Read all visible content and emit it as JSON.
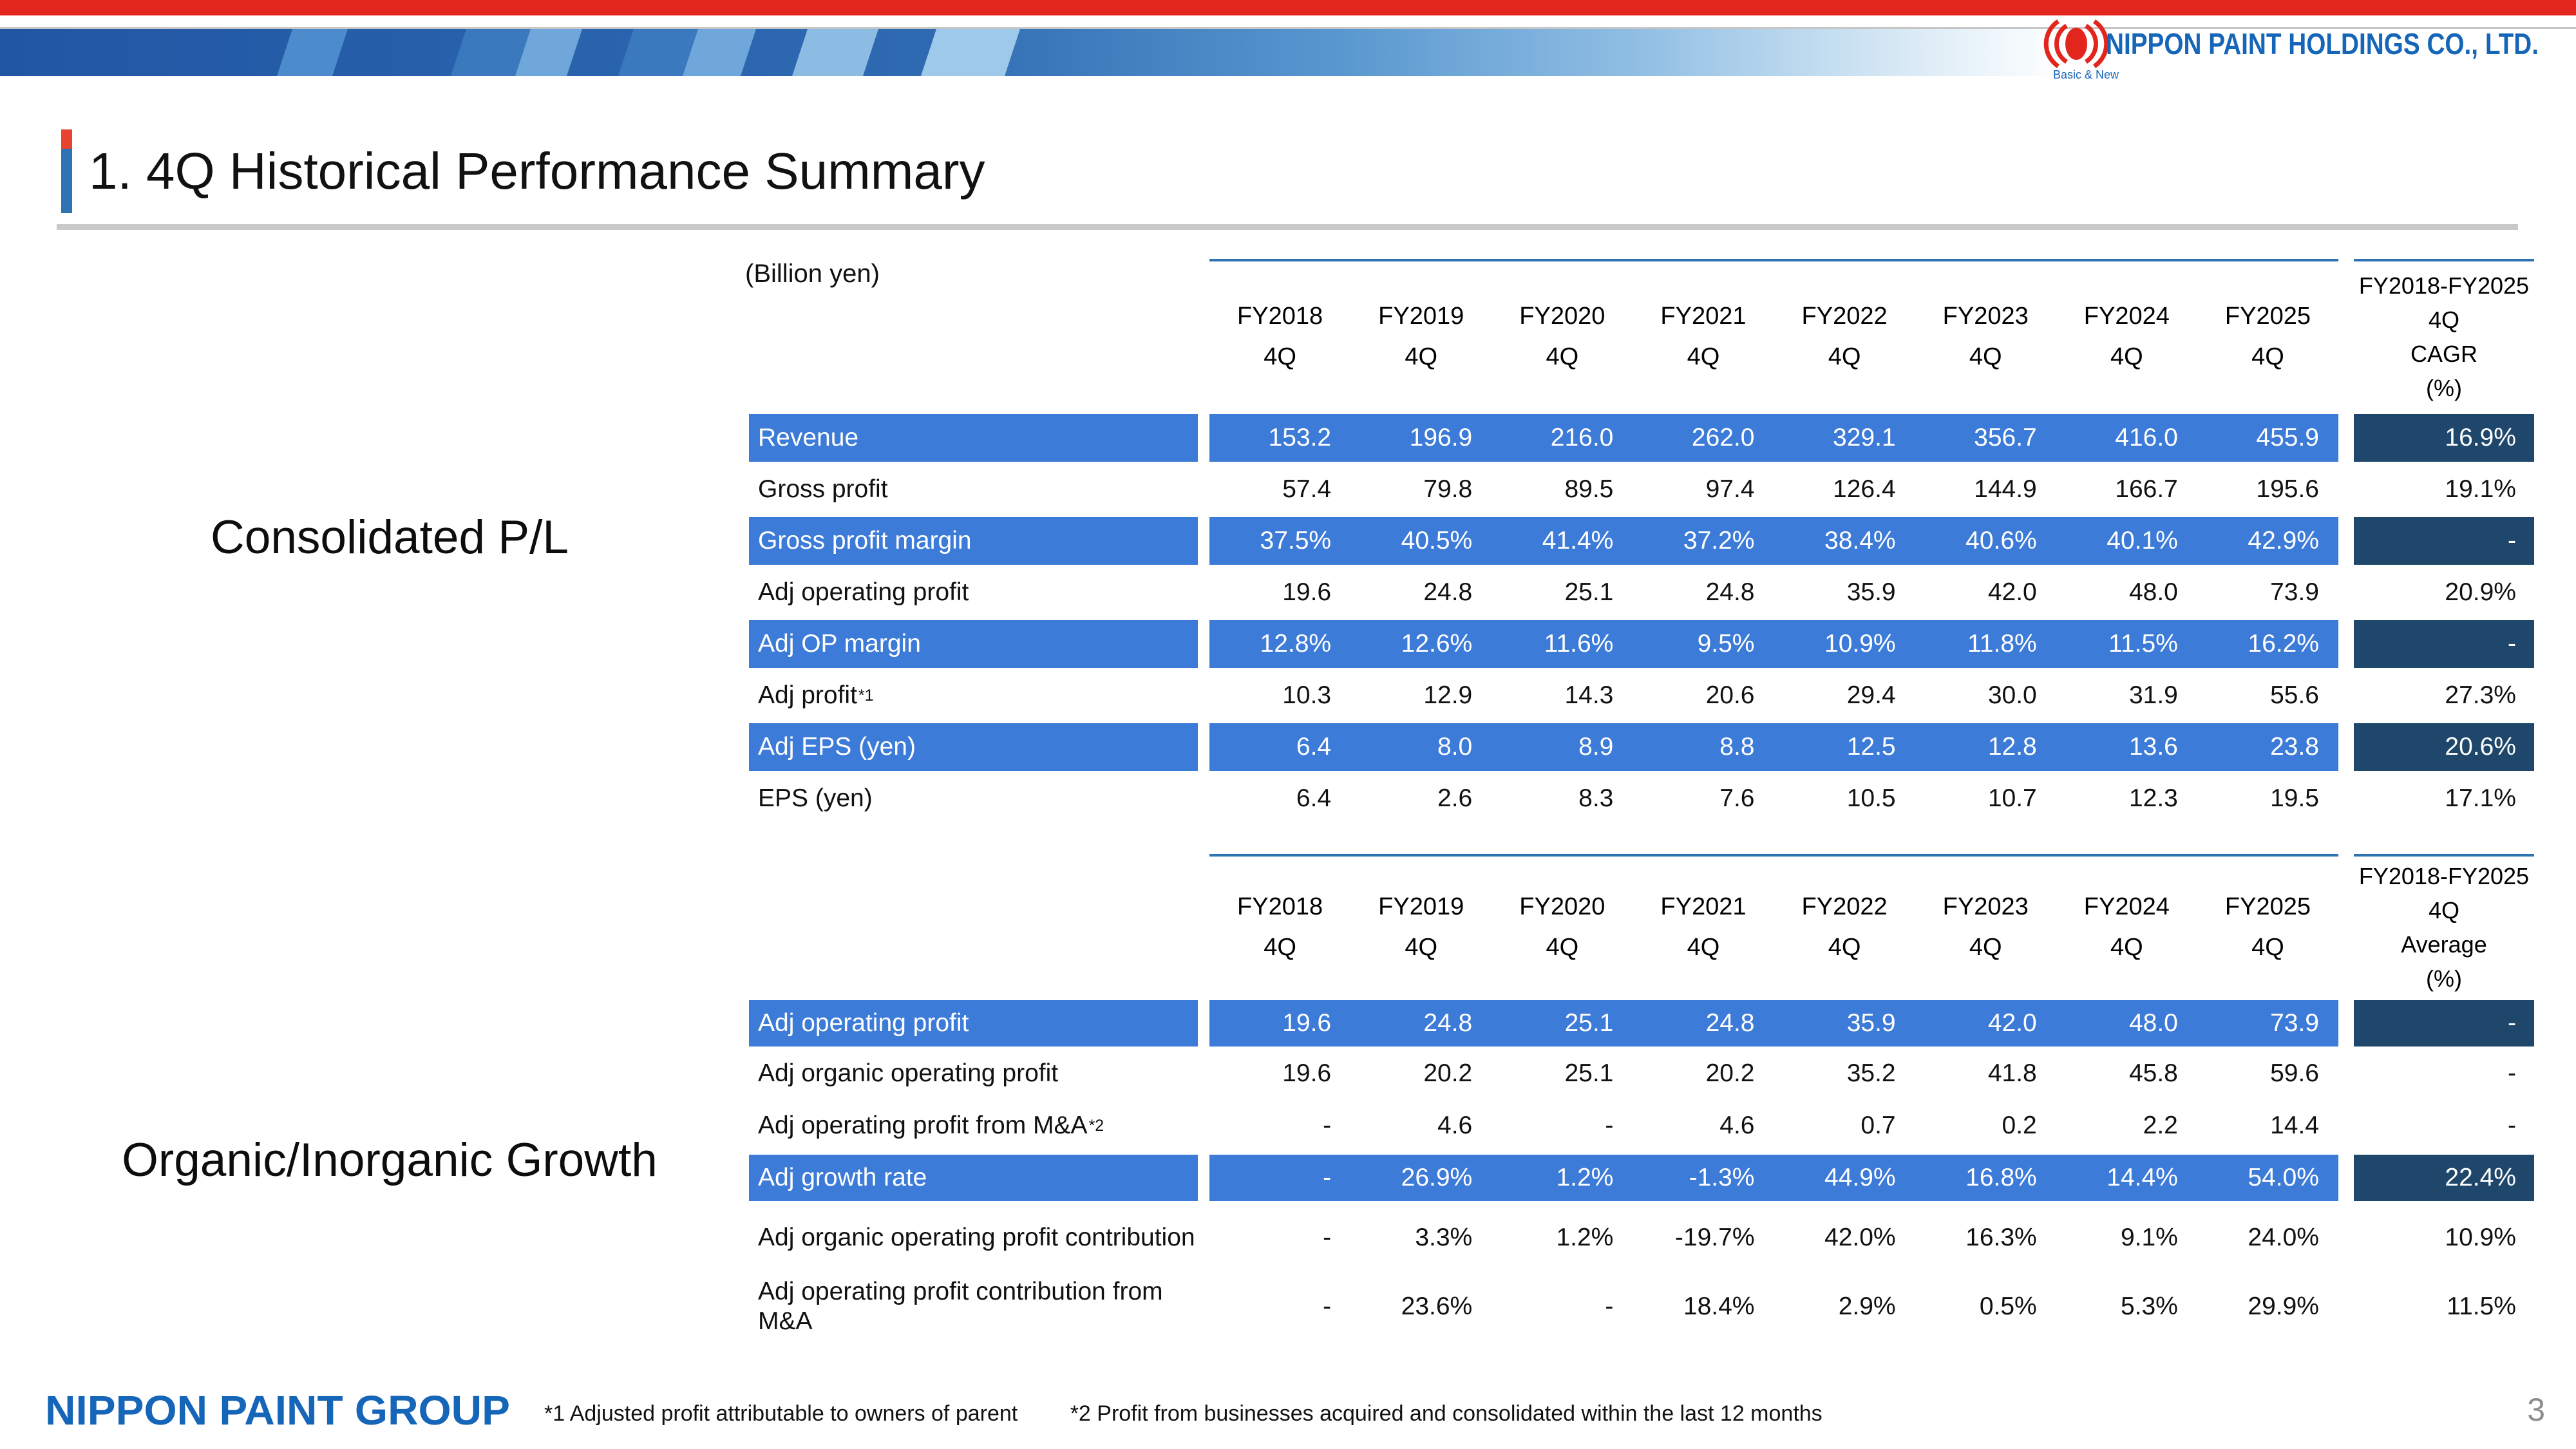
{
  "header": {
    "title": "1. 4Q Historical Performance Summary",
    "company_logo": {
      "name": "NIPPON PAINT HOLDINGS CO., LTD.",
      "tagline": "Basic & New"
    }
  },
  "unit_label": "(Billion yen)",
  "quarter_label": "4Q",
  "years": [
    "FY2018",
    "FY2019",
    "FY2020",
    "FY2021",
    "FY2022",
    "FY2023",
    "FY2024",
    "FY2025"
  ],
  "colors": {
    "row_highlight_blue": "#3D7BD8",
    "summary_dark_navy": "#1F476B",
    "header_rule_blue": "#2E74B5",
    "banner_red": "#E3261D",
    "logo_blue": "#1565B8",
    "title_rule_gray": "#C9C9C9"
  },
  "tables": [
    {
      "section_label": "Consolidated P/L",
      "summary_header_lines": [
        "FY2018-FY2025",
        "4Q",
        "CAGR",
        "(%)"
      ],
      "rows": [
        {
          "label": "Revenue",
          "highlight": true,
          "values": [
            "153.2",
            "196.9",
            "216.0",
            "262.0",
            "329.1",
            "356.7",
            "416.0",
            "455.9"
          ],
          "summary": "16.9%"
        },
        {
          "label": "Gross profit",
          "highlight": false,
          "values": [
            "57.4",
            "79.8",
            "89.5",
            "97.4",
            "126.4",
            "144.9",
            "166.7",
            "195.6"
          ],
          "summary": "19.1%"
        },
        {
          "label": "Gross profit margin",
          "highlight": true,
          "values": [
            "37.5%",
            "40.5%",
            "41.4%",
            "37.2%",
            "38.4%",
            "40.6%",
            "40.1%",
            "42.9%"
          ],
          "summary": "-"
        },
        {
          "label": "Adj operating profit",
          "highlight": false,
          "values": [
            "19.6",
            "24.8",
            "25.1",
            "24.8",
            "35.9",
            "42.0",
            "48.0",
            "73.9"
          ],
          "summary": "20.9%"
        },
        {
          "label": "Adj OP margin",
          "highlight": true,
          "values": [
            "12.8%",
            "12.6%",
            "11.6%",
            "9.5%",
            "10.9%",
            "11.8%",
            "11.5%",
            "16.2%"
          ],
          "summary": "-"
        },
        {
          "label": "Adj profit",
          "sup": "*1",
          "highlight": false,
          "values": [
            "10.3",
            "12.9",
            "14.3",
            "20.6",
            "29.4",
            "30.0",
            "31.9",
            "55.6"
          ],
          "summary": "27.3%"
        },
        {
          "label": "Adj EPS (yen)",
          "highlight": true,
          "values": [
            "6.4",
            "8.0",
            "8.9",
            "8.8",
            "12.5",
            "12.8",
            "13.6",
            "23.8"
          ],
          "summary": "20.6%"
        },
        {
          "label": "EPS (yen)",
          "highlight": false,
          "values": [
            "6.4",
            "2.6",
            "8.3",
            "7.6",
            "10.5",
            "10.7",
            "12.3",
            "19.5"
          ],
          "summary": "17.1%"
        }
      ]
    },
    {
      "section_label": "Organic/Inorganic Growth",
      "summary_header_lines": [
        "FY2018-FY2025",
        "4Q",
        "Average",
        "(%)"
      ],
      "rows": [
        {
          "label": "Adj operating profit",
          "highlight": true,
          "values": [
            "19.6",
            "24.8",
            "25.1",
            "24.8",
            "35.9",
            "42.0",
            "48.0",
            "73.9"
          ],
          "summary": "-"
        },
        {
          "label": "Adj organic operating profit",
          "highlight": false,
          "values": [
            "19.6",
            "20.2",
            "25.1",
            "20.2",
            "35.2",
            "41.8",
            "45.8",
            "59.6"
          ],
          "summary": "-"
        },
        {
          "label": "Adj operating profit from M&A",
          "sup": "*2",
          "highlight": false,
          "values": [
            "-",
            "4.6",
            "-",
            "4.6",
            "0.7",
            "0.2",
            "2.2",
            "14.4"
          ],
          "summary": "-"
        },
        {
          "label": "Adj growth rate",
          "highlight": true,
          "values": [
            "-",
            "26.9%",
            "1.2%",
            "-1.3%",
            "44.9%",
            "16.8%",
            "14.4%",
            "54.0%"
          ],
          "summary": "22.4%"
        },
        {
          "label": "Adj organic operating profit contribution",
          "highlight": false,
          "values": [
            "-",
            "3.3%",
            "1.2%",
            "-19.7%",
            "42.0%",
            "16.3%",
            "9.1%",
            "24.0%"
          ],
          "summary": "10.9%"
        },
        {
          "label": "Adj operating profit contribution from M&A",
          "highlight": false,
          "values": [
            "-",
            "23.6%",
            "-",
            "18.4%",
            "2.9%",
            "0.5%",
            "5.3%",
            "29.9%"
          ],
          "summary": "11.5%"
        }
      ]
    }
  ],
  "footer": {
    "group_logo": "NIPPON PAINT GROUP",
    "footnote1": "*1 Adjusted profit attributable to owners of parent",
    "footnote2": "*2 Profit from businesses acquired and consolidated within the last 12 months",
    "page_number": "3"
  }
}
